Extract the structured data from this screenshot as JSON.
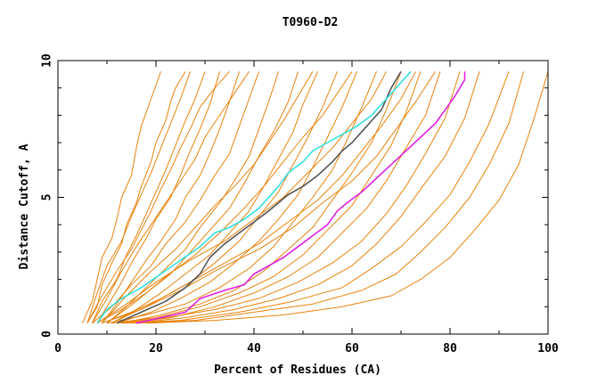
{
  "chart_data": {
    "type": "line",
    "title": "T0960-D2",
    "xlabel": "Percent of Residues (CA)",
    "ylabel": "Distance Cutoff, A",
    "xlim": [
      0,
      100
    ],
    "ylim": [
      0,
      10
    ],
    "xticks": [
      0,
      20,
      40,
      60,
      80,
      100
    ],
    "yticks": [
      0,
      5,
      10
    ],
    "grid": false,
    "background_series_color": "#e8820c",
    "series": [
      {
        "name": "highlight-dark",
        "color": "#555555",
        "x": [
          12,
          17,
          22,
          26,
          29,
          31,
          34,
          37,
          40,
          43,
          45,
          47,
          50,
          53,
          56,
          58,
          60,
          62,
          64,
          66,
          67,
          68,
          69,
          70
        ],
        "y": [
          0.4,
          0.8,
          1.2,
          1.7,
          2.2,
          2.8,
          3.3,
          3.7,
          4.1,
          4.5,
          4.8,
          5.1,
          5.4,
          5.8,
          6.3,
          6.7,
          7.0,
          7.4,
          7.8,
          8.2,
          8.6,
          9.0,
          9.3,
          9.6
        ]
      },
      {
        "name": "highlight-cyan",
        "color": "#33e0e0",
        "x": [
          8,
          10,
          13,
          17,
          21,
          25,
          29,
          32,
          35,
          38,
          41,
          43,
          45,
          47,
          50,
          52,
          55,
          58,
          61,
          64,
          66,
          68,
          70,
          72
        ],
        "y": [
          0.4,
          0.9,
          1.3,
          1.7,
          2.2,
          2.7,
          3.2,
          3.7,
          3.9,
          4.2,
          4.6,
          5.0,
          5.4,
          5.9,
          6.3,
          6.7,
          7.0,
          7.3,
          7.6,
          8.0,
          8.4,
          8.8,
          9.2,
          9.6
        ]
      },
      {
        "name": "highlight-magenta",
        "color": "#e020e0",
        "x": [
          16,
          21,
          26,
          29,
          34,
          38,
          40,
          43,
          46,
          49,
          52,
          55,
          57,
          59,
          62,
          65,
          68,
          71,
          74,
          77,
          79,
          81,
          83,
          83
        ],
        "y": [
          0.4,
          0.6,
          0.8,
          1.3,
          1.6,
          1.8,
          2.2,
          2.5,
          2.8,
          3.2,
          3.6,
          4.0,
          4.5,
          4.8,
          5.2,
          5.7,
          6.2,
          6.7,
          7.2,
          7.7,
          8.2,
          8.7,
          9.3,
          9.6
        ]
      },
      {
        "name": "model-01",
        "x": [
          5,
          7,
          8,
          9,
          11,
          12,
          13,
          15,
          16,
          17,
          19,
          21
        ],
        "y": [
          0.4,
          1.2,
          2.0,
          2.8,
          3.5,
          4.2,
          5.0,
          5.8,
          6.8,
          7.6,
          8.6,
          9.6
        ]
      },
      {
        "name": "model-02",
        "x": [
          6,
          8,
          9,
          11,
          13,
          14,
          16,
          17,
          19,
          20,
          22,
          23,
          24,
          26
        ],
        "y": [
          0.4,
          1.0,
          1.8,
          2.6,
          3.3,
          4.0,
          4.8,
          5.4,
          6.3,
          7.0,
          7.8,
          8.5,
          9.0,
          9.6
        ]
      },
      {
        "name": "model-03",
        "x": [
          7,
          9,
          12,
          14,
          16,
          18,
          20,
          22,
          24,
          26,
          28,
          30
        ],
        "y": [
          0.4,
          1.2,
          2.0,
          2.9,
          3.6,
          4.4,
          5.2,
          6.0,
          6.9,
          7.8,
          8.6,
          9.6
        ]
      },
      {
        "name": "model-04",
        "x": [
          8,
          10,
          13,
          15,
          18,
          20,
          23,
          25,
          27,
          29,
          31,
          33
        ],
        "y": [
          0.4,
          1.0,
          1.9,
          2.6,
          3.5,
          4.2,
          5.0,
          5.8,
          6.7,
          7.5,
          8.4,
          9.6
        ]
      },
      {
        "name": "model-05",
        "x": [
          9,
          12,
          15,
          18,
          21,
          24,
          26,
          29,
          31,
          33,
          35,
          37
        ],
        "y": [
          0.4,
          1.1,
          1.9,
          2.7,
          3.4,
          4.2,
          5.0,
          5.8,
          6.6,
          7.5,
          8.5,
          9.6
        ]
      },
      {
        "name": "model-06",
        "x": [
          7,
          11,
          15,
          19,
          22,
          26,
          29,
          32,
          35,
          37,
          39,
          41
        ],
        "y": [
          0.4,
          1.0,
          1.8,
          2.5,
          3.3,
          4.1,
          4.9,
          5.8,
          6.6,
          7.6,
          8.6,
          9.6
        ]
      },
      {
        "name": "model-07",
        "x": [
          10,
          14,
          18,
          22,
          26,
          29,
          33,
          36,
          39,
          41,
          43,
          45
        ],
        "y": [
          0.4,
          1.0,
          1.7,
          2.4,
          3.1,
          3.9,
          4.8,
          5.6,
          6.5,
          7.5,
          8.5,
          9.6
        ]
      },
      {
        "name": "model-08",
        "x": [
          8,
          13,
          18,
          23,
          27,
          31,
          35,
          38,
          41,
          44,
          47,
          49
        ],
        "y": [
          0.4,
          0.9,
          1.5,
          2.2,
          3.0,
          3.8,
          4.6,
          5.5,
          6.5,
          7.4,
          8.5,
          9.6
        ]
      },
      {
        "name": "model-09",
        "x": [
          11,
          16,
          21,
          26,
          31,
          35,
          39,
          42,
          45,
          48,
          50,
          53
        ],
        "y": [
          0.4,
          0.9,
          1.5,
          2.2,
          2.9,
          3.7,
          4.5,
          5.4,
          6.4,
          7.4,
          8.4,
          9.6
        ]
      },
      {
        "name": "model-10",
        "x": [
          9,
          15,
          21,
          27,
          32,
          37,
          41,
          45,
          48,
          51,
          54,
          57
        ],
        "y": [
          0.4,
          0.8,
          1.3,
          1.9,
          2.6,
          3.4,
          4.3,
          5.2,
          6.2,
          7.2,
          8.3,
          9.6
        ]
      },
      {
        "name": "model-11",
        "x": [
          12,
          19,
          25,
          31,
          36,
          41,
          45,
          49,
          52,
          55,
          58,
          61
        ],
        "y": [
          0.4,
          0.8,
          1.3,
          1.9,
          2.6,
          3.4,
          4.2,
          5.1,
          6.1,
          7.2,
          8.3,
          9.6
        ]
      },
      {
        "name": "model-12",
        "x": [
          10,
          18,
          26,
          33,
          39,
          44,
          48,
          52,
          56,
          59,
          62,
          65
        ],
        "y": [
          0.4,
          0.7,
          1.1,
          1.7,
          2.4,
          3.2,
          4.1,
          5.0,
          6.0,
          7.1,
          8.3,
          9.6
        ]
      },
      {
        "name": "model-13",
        "x": [
          13,
          21,
          29,
          36,
          42,
          47,
          52,
          56,
          60,
          64,
          67,
          70
        ],
        "y": [
          0.4,
          0.7,
          1.1,
          1.6,
          2.3,
          3.1,
          3.9,
          4.9,
          5.9,
          7.0,
          8.2,
          9.6
        ]
      },
      {
        "name": "model-14",
        "x": [
          11,
          20,
          29,
          37,
          44,
          50,
          55,
          60,
          64,
          68,
          71,
          74
        ],
        "y": [
          0.4,
          0.6,
          1.0,
          1.5,
          2.1,
          2.9,
          3.8,
          4.7,
          5.8,
          6.9,
          8.1,
          9.6
        ]
      },
      {
        "name": "model-15",
        "x": [
          14,
          23,
          32,
          40,
          47,
          53,
          58,
          63,
          67,
          71,
          75,
          78
        ],
        "y": [
          0.4,
          0.6,
          1.0,
          1.5,
          2.1,
          2.8,
          3.7,
          4.6,
          5.6,
          6.8,
          8.0,
          9.6
        ]
      },
      {
        "name": "model-16",
        "x": [
          12,
          22,
          32,
          41,
          49,
          56,
          62,
          67,
          71,
          75,
          79,
          82
        ],
        "y": [
          0.4,
          0.6,
          0.9,
          1.3,
          1.9,
          2.6,
          3.4,
          4.4,
          5.4,
          6.6,
          7.9,
          9.6
        ]
      },
      {
        "name": "model-17",
        "x": [
          15,
          26,
          36,
          45,
          53,
          60,
          65,
          70,
          74,
          79,
          83,
          86
        ],
        "y": [
          0.4,
          0.6,
          0.9,
          1.3,
          1.8,
          2.5,
          3.3,
          4.3,
          5.3,
          6.5,
          7.9,
          9.6
        ]
      },
      {
        "name": "model-18",
        "x": [
          13,
          25,
          37,
          48,
          58,
          64,
          70,
          75,
          80,
          84,
          88,
          92
        ],
        "y": [
          0.4,
          0.5,
          0.8,
          1.2,
          1.7,
          2.4,
          3.2,
          4.1,
          5.1,
          6.3,
          7.7,
          9.6
        ]
      },
      {
        "name": "model-19",
        "x": [
          16,
          28,
          40,
          52,
          62,
          69,
          74,
          79,
          84,
          88,
          92,
          95
        ],
        "y": [
          0.4,
          0.5,
          0.8,
          1.1,
          1.6,
          2.2,
          3.0,
          3.9,
          5.0,
          6.2,
          7.7,
          9.6
        ]
      },
      {
        "name": "model-20",
        "x": [
          18,
          32,
          46,
          58,
          68,
          74,
          80,
          85,
          90,
          94,
          97,
          100
        ],
        "y": [
          0.4,
          0.5,
          0.7,
          1.0,
          1.4,
          2.0,
          2.8,
          3.8,
          4.9,
          6.2,
          7.8,
          9.6
        ]
      },
      {
        "name": "model-21",
        "x": [
          6,
          9,
          12,
          15,
          17,
          19,
          21,
          23,
          25,
          27,
          29,
          32,
          35
        ],
        "y": [
          0.4,
          1.4,
          2.3,
          3.1,
          3.8,
          4.5,
          5.3,
          6.0,
          6.8,
          7.5,
          8.3,
          9.0,
          9.6
        ]
      },
      {
        "name": "model-22",
        "x": [
          9,
          14,
          19,
          24,
          28,
          32,
          36,
          40,
          43,
          46,
          49,
          52
        ],
        "y": [
          0.4,
          1.4,
          2.3,
          3.1,
          3.9,
          4.7,
          5.4,
          6.2,
          7.0,
          7.8,
          8.7,
          9.6
        ]
      },
      {
        "name": "model-23",
        "x": [
          10,
          16,
          22,
          28,
          33,
          38,
          42,
          46,
          50,
          54,
          57,
          60
        ],
        "y": [
          0.4,
          1.2,
          2.1,
          2.9,
          3.7,
          4.6,
          5.4,
          6.3,
          7.2,
          8.0,
          8.8,
          9.6
        ]
      },
      {
        "name": "model-24",
        "x": [
          8,
          14,
          20,
          27,
          34,
          40,
          46,
          51,
          56,
          60,
          64,
          67
        ],
        "y": [
          0.4,
          1.1,
          1.9,
          2.7,
          3.4,
          4.2,
          5.0,
          5.9,
          6.8,
          7.7,
          8.6,
          9.6
        ]
      },
      {
        "name": "model-25",
        "x": [
          11,
          18,
          26,
          34,
          41,
          47,
          53,
          58,
          62,
          66,
          70,
          73
        ],
        "y": [
          0.4,
          1.0,
          1.8,
          2.6,
          3.3,
          4.1,
          4.9,
          5.8,
          6.7,
          7.6,
          8.6,
          9.6
        ]
      },
      {
        "name": "model-26",
        "x": [
          9,
          17,
          25,
          33,
          41,
          48,
          54,
          60,
          65,
          69,
          73,
          77
        ],
        "y": [
          0.4,
          0.9,
          1.6,
          2.4,
          3.1,
          3.9,
          4.8,
          5.6,
          6.5,
          7.5,
          8.5,
          9.6
        ]
      },
      {
        "name": "model-27",
        "x": [
          6,
          8,
          10,
          13,
          15,
          17,
          19,
          21,
          23,
          25,
          27
        ],
        "y": [
          0.4,
          1.5,
          2.5,
          3.4,
          4.3,
          5.1,
          5.9,
          6.8,
          7.7,
          8.6,
          9.6
        ]
      },
      {
        "name": "model-28",
        "x": [
          7,
          10,
          13,
          16,
          19,
          22,
          25,
          28,
          30,
          33,
          36,
          39
        ],
        "y": [
          0.4,
          1.3,
          2.3,
          3.2,
          4.0,
          4.8,
          5.6,
          6.4,
          7.2,
          8.0,
          8.8,
          9.6
        ]
      }
    ]
  }
}
